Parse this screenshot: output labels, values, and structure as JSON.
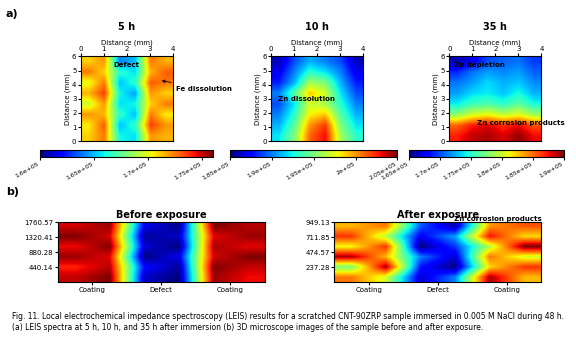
{
  "figure": {
    "panel_labels": [
      "a)",
      "b)"
    ],
    "caption": "Fig. 11. Local electrochemical impedance spectroscopy (LEIS) results for a scratched CNT-90ZRP sample immersed in 0.005 M NaCl during 48 h. (a) LEIS spectra at 5 h, 10 h, and 35 h after immersion (b) 3D microscope images of the sample before and after exposure."
  },
  "chart_data": [
    {
      "type": "heatmap",
      "title": "5 h",
      "xlabel": "Distance (mm)",
      "ylabel": "Distance (mm)",
      "xlim": [
        0,
        4
      ],
      "ylim": [
        0,
        6
      ],
      "xticks": [
        0,
        1,
        2,
        3,
        4
      ],
      "yticks": [
        0,
        1,
        2,
        3,
        4,
        5,
        6
      ],
      "annotations": [
        "Defect",
        "Fe dissolution"
      ],
      "cells": [
        [
          171000,
          172500,
          166000,
          165500,
          172000,
          171500
        ],
        [
          170500,
          173000,
          165000,
          166500,
          173500,
          172000
        ],
        [
          172000,
          171500,
          166500,
          165000,
          172500,
          170500
        ],
        [
          169500,
          172000,
          165500,
          166000,
          171000,
          172500
        ],
        [
          171500,
          173500,
          166000,
          164500,
          172000,
          171000
        ],
        [
          170000,
          172500,
          165000,
          166500,
          173000,
          172500
        ],
        [
          172500,
          171000,
          166500,
          165500,
          171500,
          173000
        ],
        [
          171000,
          172000,
          164000,
          165000,
          172500,
          171500
        ]
      ],
      "color_range": [
        160000,
        176000
      ],
      "color_ticks": [
        {
          "value": 160000,
          "label": "1.6e+05"
        },
        {
          "value": 165000,
          "label": "1.65e+05"
        },
        {
          "value": 170000,
          "label": "1.7e+05"
        },
        {
          "value": 175000,
          "label": "1.75e+05"
        }
      ]
    },
    {
      "type": "heatmap",
      "title": "10 h",
      "xlabel": "Distance (mm)",
      "ylabel": "Distance (mm)",
      "xlim": [
        0,
        4
      ],
      "ylim": [
        0,
        6
      ],
      "xticks": [
        0,
        1,
        2,
        3,
        4
      ],
      "yticks": [
        0,
        1,
        2,
        3,
        4,
        5,
        6
      ],
      "annotations": [
        "Zn dissolution"
      ],
      "cells": [
        [
          192000,
          195000,
          201000,
          203000,
          196000,
          193000
        ],
        [
          191000,
          194000,
          200000,
          202000,
          195000,
          192000
        ],
        [
          190000,
          193000,
          198000,
          199000,
          194000,
          191000
        ],
        [
          189000,
          192000,
          197000,
          196000,
          193000,
          190000
        ],
        [
          190000,
          194000,
          199000,
          197000,
          192000,
          189000
        ],
        [
          188000,
          191000,
          196000,
          195000,
          191000,
          188000
        ],
        [
          187000,
          190000,
          193000,
          192000,
          190000,
          187000
        ],
        [
          186000,
          189000,
          191000,
          190000,
          189000,
          186000
        ]
      ],
      "color_range": [
        185000,
        205000
      ],
      "color_ticks": [
        {
          "value": 185000,
          "label": "1.85e+05"
        },
        {
          "value": 190000,
          "label": "1.9e+05"
        },
        {
          "value": 195000,
          "label": "1.95e+05"
        },
        {
          "value": 200000,
          "label": "2e+05"
        },
        {
          "value": 205000,
          "label": "2.05e+05"
        }
      ]
    },
    {
      "type": "heatmap",
      "title": "35 h",
      "xlabel": "Distance (mm)",
      "ylabel": "Distance (mm)",
      "xlim": [
        0,
        4
      ],
      "ylim": [
        0,
        6
      ],
      "xticks": [
        0,
        1,
        2,
        3,
        4
      ],
      "yticks": [
        0,
        1,
        2,
        3,
        4,
        5,
        6
      ],
      "annotations": [
        "Zn depletion",
        "Zn corrosion products"
      ],
      "cells": [
        [
          187000,
          188500,
          189000,
          188000,
          189500,
          187500
        ],
        [
          185000,
          187000,
          188000,
          186500,
          187500,
          185500
        ],
        [
          178000,
          180000,
          181000,
          179500,
          180500,
          178500
        ],
        [
          174000,
          175500,
          176000,
          175000,
          176500,
          174500
        ],
        [
          172000,
          173500,
          174000,
          173000,
          174500,
          172500
        ],
        [
          171000,
          172000,
          173500,
          172500,
          173000,
          171500
        ],
        [
          169000,
          171000,
          172000,
          171500,
          172000,
          170500
        ],
        [
          166000,
          167500,
          170000,
          170500,
          171000,
          169500
        ]
      ],
      "color_range": [
        165000,
        190000
      ],
      "color_ticks": [
        {
          "value": 165000,
          "label": "1.65e+05"
        },
        {
          "value": 170000,
          "label": "1.7e+05"
        },
        {
          "value": 175000,
          "label": "1.75e+05"
        },
        {
          "value": 180000,
          "label": "1.8e+05"
        },
        {
          "value": 185000,
          "label": "1.85e+05"
        },
        {
          "value": 190000,
          "label": "1.9e+05"
        }
      ]
    },
    {
      "type": "heatmap",
      "title": "Before exposure",
      "xlim": [
        0,
        6
      ],
      "ylim": [
        0,
        1760.57
      ],
      "xticks": [
        {
          "value": 1,
          "label": "Coating"
        },
        {
          "value": 3,
          "label": "Defect"
        },
        {
          "value": 5,
          "label": "Coating"
        }
      ],
      "yticks": [
        440.14,
        880.28,
        1320.41,
        1760.57
      ],
      "annotations": [],
      "cells": [
        [
          0.85,
          0.9,
          0.15,
          0.1,
          0.88,
          0.82
        ],
        [
          0.8,
          0.86,
          0.2,
          0.12,
          0.9,
          0.85
        ],
        [
          0.88,
          0.83,
          0.1,
          0.18,
          0.84,
          0.9
        ],
        [
          0.82,
          0.9,
          0.16,
          0.1,
          0.87,
          0.83
        ],
        [
          0.9,
          0.84,
          0.12,
          0.15,
          0.83,
          0.88
        ],
        [
          0.84,
          0.88,
          0.18,
          0.11,
          0.9,
          0.86
        ]
      ]
    },
    {
      "type": "heatmap",
      "title": "After exposure",
      "xlim": [
        0,
        6
      ],
      "ylim": [
        0,
        949.13
      ],
      "xticks": [
        {
          "value": 1,
          "label": "Coating"
        },
        {
          "value": 3,
          "label": "Defect"
        },
        {
          "value": 5,
          "label": "Coating"
        }
      ],
      "yticks": [
        237.28,
        474.57,
        711.85,
        949.13
      ],
      "annotations": [
        "Zn corrosion products"
      ],
      "cells": [
        [
          0.5,
          0.45,
          0.3,
          0.35,
          0.55,
          0.48
        ],
        [
          0.42,
          0.55,
          0.32,
          0.28,
          0.47,
          0.52
        ],
        [
          0.55,
          0.48,
          0.35,
          0.3,
          0.5,
          0.45
        ],
        [
          0.46,
          0.52,
          0.28,
          0.33,
          0.44,
          0.56
        ],
        [
          0.52,
          0.44,
          0.31,
          0.36,
          0.53,
          0.47
        ],
        [
          0.48,
          0.5,
          0.34,
          0.29,
          0.49,
          0.51
        ]
      ]
    }
  ]
}
